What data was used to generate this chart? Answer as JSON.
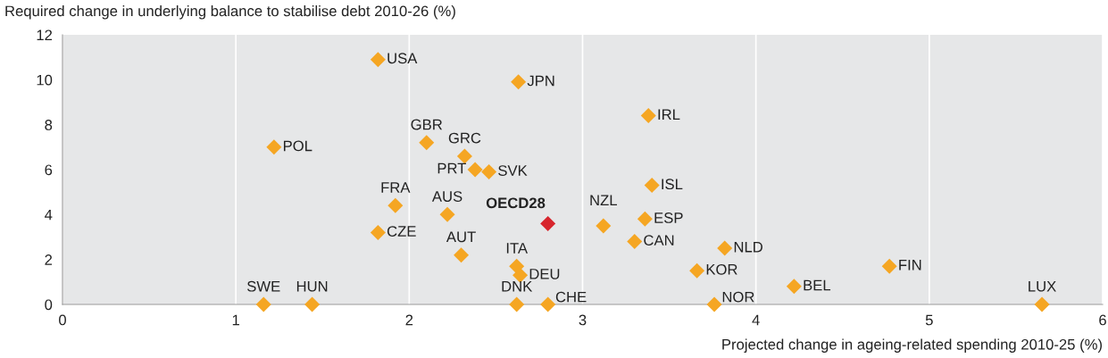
{
  "chart_data": {
    "type": "scatter",
    "xlabel": "Projected change in ageing-related spending 2010-25 (%)",
    "ylabel": "Required change in underlying balance to stabilise debt 2010-26 (%)",
    "xlim": [
      0,
      6
    ],
    "xticks": [
      0,
      1,
      2,
      3,
      4,
      5,
      6
    ],
    "ylim": [
      0,
      12
    ],
    "yticks": [
      0,
      2,
      4,
      6,
      8,
      10,
      12
    ],
    "grid": "x",
    "marker": "diamond",
    "legend": false,
    "series": [
      {
        "color": "#f5a623",
        "x": [
          1.82,
          2.63,
          3.38,
          2.1,
          1.22,
          2.32,
          2.38,
          2.46,
          3.4,
          1.92,
          2.22,
          3.12,
          3.36,
          1.82,
          3.3,
          3.82,
          2.3,
          2.62,
          2.64,
          4.77,
          3.66,
          4.22,
          1.16,
          1.44,
          2.62,
          2.8,
          3.76,
          5.65
        ],
        "values": [
          10.9,
          9.9,
          8.4,
          7.2,
          7.0,
          6.6,
          6.0,
          5.9,
          5.3,
          4.4,
          4.0,
          3.5,
          3.8,
          3.2,
          2.8,
          2.5,
          2.2,
          1.7,
          1.3,
          1.7,
          1.5,
          0.8,
          0,
          0,
          0,
          0,
          0,
          0
        ]
      },
      {
        "name": "OECD28",
        "color": "#d7252d",
        "x": [
          2.8
        ],
        "values": [
          3.6
        ]
      }
    ],
    "annotations": [
      {
        "text": "USA",
        "x": 1.82,
        "y": 10.9
      },
      {
        "text": "JPN",
        "x": 2.63,
        "y": 9.9
      },
      {
        "text": "IRL",
        "x": 3.38,
        "y": 8.4
      },
      {
        "text": "GBR",
        "x": 2.1,
        "y": 7.2
      },
      {
        "text": "POL",
        "x": 1.22,
        "y": 7.0
      },
      {
        "text": "GRC",
        "x": 2.32,
        "y": 6.6
      },
      {
        "text": "PRT",
        "x": 2.38,
        "y": 6.0
      },
      {
        "text": "SVK",
        "x": 2.46,
        "y": 5.9
      },
      {
        "text": "ISL",
        "x": 3.4,
        "y": 5.3
      },
      {
        "text": "FRA",
        "x": 1.92,
        "y": 4.4
      },
      {
        "text": "AUS",
        "x": 2.22,
        "y": 4.0
      },
      {
        "text": "NZL",
        "x": 3.12,
        "y": 3.5
      },
      {
        "text": "ESP",
        "x": 3.36,
        "y": 3.8
      },
      {
        "text": "CZE",
        "x": 1.82,
        "y": 3.2
      },
      {
        "text": "CAN",
        "x": 3.3,
        "y": 2.8
      },
      {
        "text": "NLD",
        "x": 3.82,
        "y": 2.5
      },
      {
        "text": "AUT",
        "x": 2.3,
        "y": 2.2
      },
      {
        "text": "ITA",
        "x": 2.62,
        "y": 1.7
      },
      {
        "text": "DEU",
        "x": 2.64,
        "y": 1.3
      },
      {
        "text": "FIN",
        "x": 4.77,
        "y": 1.7
      },
      {
        "text": "KOR",
        "x": 3.66,
        "y": 1.5
      },
      {
        "text": "BEL",
        "x": 4.22,
        "y": 0.8
      },
      {
        "text": "SWE",
        "x": 1.16,
        "y": 0
      },
      {
        "text": "HUN",
        "x": 1.44,
        "y": 0
      },
      {
        "text": "DNK",
        "x": 2.62,
        "y": 0
      },
      {
        "text": "CHE",
        "x": 2.8,
        "y": 0
      },
      {
        "text": "NOR",
        "x": 3.76,
        "y": 0
      },
      {
        "text": "LUX",
        "x": 5.65,
        "y": 0
      }
    ]
  }
}
